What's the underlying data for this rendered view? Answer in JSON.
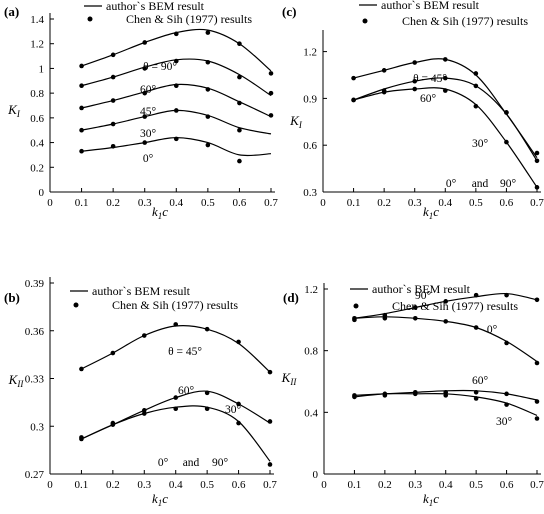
{
  "chart_data": [
    {
      "type": "line",
      "panel_label": "(a)",
      "xlabel_main": "k",
      "xlabel_sub": "1",
      "xlabel_tail": "c",
      "ylabel_main": "K",
      "ylabel_sub": "I",
      "xlim": [
        0,
        0.7
      ],
      "ylim": [
        0,
        1.4
      ],
      "xticks": [
        "0",
        "0.1",
        "0.2",
        "0.3",
        "0.4",
        "0.5",
        "0.6",
        "0.7"
      ],
      "yticks": [
        "0",
        "0.2",
        "0.4",
        "0.6",
        "0.8",
        "1",
        "1.2",
        "1.4"
      ],
      "legend": [
        "author`s BEM result",
        "Chen & Sih (1977) results"
      ],
      "series": [
        {
          "name": "0°",
          "bem_x": [
            0.1,
            0.2,
            0.3,
            0.4,
            0.5,
            0.6,
            0.7
          ],
          "bem_y": [
            0.33,
            0.36,
            0.4,
            0.44,
            0.4,
            0.3,
            0.31
          ],
          "pts_x": [
            0.1,
            0.2,
            0.3,
            0.4,
            0.5,
            0.6
          ],
          "pts_y": [
            0.33,
            0.37,
            0.4,
            0.43,
            0.38,
            0.25
          ]
        },
        {
          "name": "30°",
          "bem_x": [
            0.1,
            0.2,
            0.3,
            0.4,
            0.5,
            0.6,
            0.7
          ],
          "bem_y": [
            0.5,
            0.55,
            0.61,
            0.66,
            0.62,
            0.52,
            0.47
          ],
          "pts_x": [
            0.1,
            0.2,
            0.3,
            0.4,
            0.5,
            0.6
          ],
          "pts_y": [
            0.5,
            0.55,
            0.61,
            0.66,
            0.61,
            0.5
          ]
        },
        {
          "name": "45°",
          "bem_x": [
            0.1,
            0.2,
            0.3,
            0.4,
            0.5,
            0.6,
            0.7
          ],
          "bem_y": [
            0.68,
            0.74,
            0.81,
            0.87,
            0.84,
            0.73,
            0.61
          ],
          "pts_x": [
            0.1,
            0.2,
            0.3,
            0.4,
            0.5,
            0.6,
            0.7
          ],
          "pts_y": [
            0.68,
            0.74,
            0.8,
            0.86,
            0.83,
            0.72,
            0.62
          ]
        },
        {
          "name": "60°",
          "bem_x": [
            0.1,
            0.2,
            0.3,
            0.4,
            0.5,
            0.6,
            0.7
          ],
          "bem_y": [
            0.86,
            0.93,
            1.01,
            1.07,
            1.06,
            0.95,
            0.78
          ],
          "pts_x": [
            0.1,
            0.2,
            0.3,
            0.4,
            0.5,
            0.6,
            0.7
          ],
          "pts_y": [
            0.86,
            0.93,
            1.0,
            1.06,
            1.05,
            0.93,
            0.8
          ]
        },
        {
          "name": "90°",
          "bem_x": [
            0.1,
            0.2,
            0.3,
            0.4,
            0.5,
            0.6,
            0.7
          ],
          "bem_y": [
            1.02,
            1.11,
            1.21,
            1.29,
            1.31,
            1.2,
            0.98
          ],
          "pts_x": [
            0.1,
            0.2,
            0.3,
            0.4,
            0.5,
            0.6,
            0.7
          ],
          "pts_y": [
            1.02,
            1.11,
            1.21,
            1.28,
            1.29,
            1.2,
            0.96
          ]
        }
      ]
    },
    {
      "type": "line",
      "panel_label": "(c)",
      "xlabel_main": "k",
      "xlabel_sub": "1",
      "xlabel_tail": "c",
      "ylabel_main": "K",
      "ylabel_sub": "I",
      "xlim": [
        0,
        0.7
      ],
      "ylim": [
        0.3,
        1.3
      ],
      "xticks": [
        "0",
        "0.1",
        "0.2",
        "0.3",
        "0.4",
        "0.5",
        "0.6",
        "0.7"
      ],
      "yticks": [
        "0.3",
        "0.6",
        "0.9",
        "1.2"
      ],
      "legend": [
        "author`s BEM result",
        "Chen & Sih (1977) results"
      ],
      "series": [
        {
          "name": "45°",
          "bem_x": [
            0.1,
            0.2,
            0.3,
            0.4,
            0.5,
            0.6,
            0.7
          ],
          "bem_y": [
            1.03,
            1.08,
            1.13,
            1.15,
            1.05,
            0.8,
            0.52
          ],
          "pts_x": [
            0.1,
            0.2,
            0.3,
            0.4,
            0.5,
            0.6,
            0.7
          ],
          "pts_y": [
            1.03,
            1.08,
            1.13,
            1.15,
            1.06,
            0.81,
            0.55
          ]
        },
        {
          "name": "60°",
          "bem_x": [
            0.1,
            0.2,
            0.3,
            0.4,
            0.5,
            0.6,
            0.7
          ],
          "bem_y": [
            0.89,
            0.96,
            1.01,
            1.03,
            0.98,
            0.8,
            0.5
          ],
          "pts_x": [
            0.1,
            0.2,
            0.3,
            0.4,
            0.5,
            0.6,
            0.7
          ],
          "pts_y": [
            0.89,
            0.95,
            1.01,
            1.03,
            0.98,
            0.81,
            0.5
          ]
        },
        {
          "name": "30°",
          "bem_x": [
            0.1,
            0.2,
            0.3,
            0.4,
            0.5,
            0.6,
            0.7
          ],
          "bem_y": [
            0.89,
            0.94,
            0.96,
            0.96,
            0.86,
            0.62,
            0.33
          ],
          "pts_x": [
            0.1,
            0.2,
            0.3,
            0.4,
            0.5,
            0.6,
            0.7
          ],
          "pts_y": [
            0.89,
            0.94,
            0.96,
            0.95,
            0.85,
            0.62,
            0.33
          ]
        }
      ]
    },
    {
      "type": "line",
      "panel_label": "(b)",
      "xlabel_main": "k",
      "xlabel_sub": "1",
      "xlabel_tail": "c",
      "ylabel_main": "K",
      "ylabel_sub": "II",
      "xlim": [
        0,
        0.7
      ],
      "ylim": [
        0.27,
        0.39
      ],
      "xticks": [
        "0",
        "0.1",
        "0.2",
        "0.3",
        "0.4",
        "0.5",
        "0.6",
        "0.7"
      ],
      "yticks": [
        "0.27",
        "0.3",
        "0.33",
        "0.36",
        "0.39"
      ],
      "legend": [
        "author`s BEM result",
        "Chen & Sih (1977) results"
      ],
      "series": [
        {
          "name": "45°",
          "bem_x": [
            0.1,
            0.2,
            0.3,
            0.4,
            0.5,
            0.6,
            0.7
          ],
          "bem_y": [
            0.336,
            0.346,
            0.357,
            0.363,
            0.361,
            0.352,
            0.334
          ],
          "pts_x": [
            0.1,
            0.2,
            0.3,
            0.4,
            0.5,
            0.6,
            0.7
          ],
          "pts_y": [
            0.336,
            0.346,
            0.357,
            0.364,
            0.361,
            0.353,
            0.334
          ]
        },
        {
          "name": "60°",
          "bem_x": [
            0.1,
            0.2,
            0.3,
            0.4,
            0.5,
            0.6,
            0.7
          ],
          "bem_y": [
            0.292,
            0.301,
            0.31,
            0.318,
            0.322,
            0.314,
            0.302
          ],
          "pts_x": [
            0.1,
            0.2,
            0.3,
            0.4,
            0.5,
            0.6,
            0.7
          ],
          "pts_y": [
            0.293,
            0.302,
            0.31,
            0.318,
            0.321,
            0.314,
            0.303
          ]
        },
        {
          "name": "30°",
          "bem_x": [
            0.1,
            0.2,
            0.3,
            0.4,
            0.5,
            0.6,
            0.7
          ],
          "bem_y": [
            0.292,
            0.301,
            0.308,
            0.312,
            0.312,
            0.303,
            0.278
          ],
          "pts_x": [
            0.1,
            0.2,
            0.3,
            0.4,
            0.5,
            0.6,
            0.7
          ],
          "pts_y": [
            0.292,
            0.301,
            0.308,
            0.311,
            0.311,
            0.302,
            0.276
          ]
        }
      ]
    },
    {
      "type": "line",
      "panel_label": "(d)",
      "xlabel_main": "k",
      "xlabel_sub": "1",
      "xlabel_tail": "c",
      "ylabel_main": "K",
      "ylabel_sub": "II",
      "xlim": [
        0,
        0.7
      ],
      "ylim": [
        0,
        1.2
      ],
      "xticks": [
        "0",
        "0.1",
        "0.2",
        "0.3",
        "0.4",
        "0.5",
        "0.6",
        "0.7"
      ],
      "yticks": [
        "0",
        "0.4",
        "0.8",
        "1.2"
      ],
      "legend": [
        "author`s BEM result",
        "Chen & Sih (1977) results"
      ],
      "series": [
        {
          "name": "90°",
          "bem_x": [
            0.1,
            0.2,
            0.3,
            0.4,
            0.5,
            0.6,
            0.7
          ],
          "bem_y": [
            1.01,
            1.04,
            1.08,
            1.12,
            1.15,
            1.17,
            1.13
          ],
          "pts_x": [
            0.1,
            0.2,
            0.3,
            0.4,
            0.5,
            0.6,
            0.7
          ],
          "pts_y": [
            1.01,
            1.03,
            1.08,
            1.12,
            1.16,
            1.16,
            1.13
          ]
        },
        {
          "name": "0°",
          "bem_x": [
            0.1,
            0.2,
            0.3,
            0.4,
            0.5,
            0.6,
            0.7
          ],
          "bem_y": [
            1.01,
            1.02,
            1.01,
            0.99,
            0.95,
            0.86,
            0.73
          ],
          "pts_x": [
            0.1,
            0.2,
            0.3,
            0.4,
            0.5,
            0.6,
            0.7
          ],
          "pts_y": [
            1.0,
            1.01,
            1.01,
            0.99,
            0.95,
            0.85,
            0.72
          ]
        },
        {
          "name": "60°",
          "bem_x": [
            0.1,
            0.2,
            0.3,
            0.4,
            0.5,
            0.6,
            0.7
          ],
          "bem_y": [
            0.51,
            0.52,
            0.53,
            0.54,
            0.54,
            0.52,
            0.48
          ],
          "pts_x": [
            0.1,
            0.2,
            0.3,
            0.4,
            0.5,
            0.6,
            0.7
          ],
          "pts_y": [
            0.51,
            0.52,
            0.53,
            0.53,
            0.53,
            0.52,
            0.47
          ]
        },
        {
          "name": "30°",
          "bem_x": [
            0.1,
            0.2,
            0.3,
            0.4,
            0.5,
            0.6,
            0.7
          ],
          "bem_y": [
            0.5,
            0.52,
            0.52,
            0.52,
            0.5,
            0.46,
            0.38
          ],
          "pts_x": [
            0.1,
            0.2,
            0.3,
            0.4,
            0.5,
            0.6,
            0.7
          ],
          "pts_y": [
            0.5,
            0.51,
            0.52,
            0.51,
            0.49,
            0.45,
            0.36
          ]
        }
      ]
    }
  ],
  "annotations": {
    "a": [
      "θ = 90°",
      "60°",
      "45°",
      "30°",
      "0°"
    ],
    "c": [
      "θ = 45°",
      "60°",
      "30°",
      "0°",
      "and",
      "90°"
    ],
    "b": [
      "θ = 45°",
      "60°",
      "30°",
      "0°",
      "and",
      "90°"
    ],
    "d": [
      "90°",
      "0°",
      "60°",
      "30°"
    ]
  }
}
